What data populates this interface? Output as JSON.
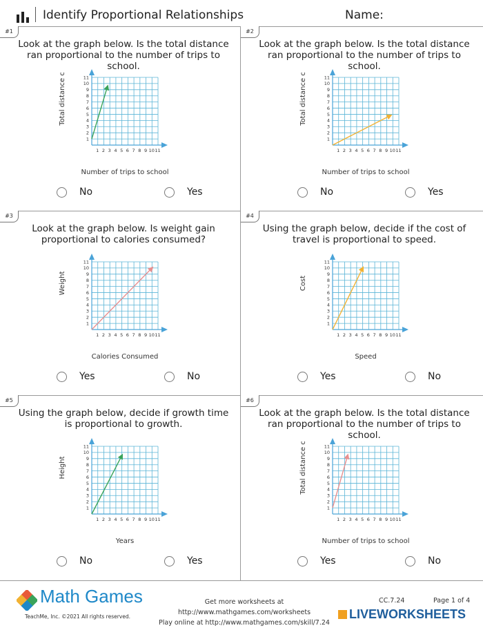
{
  "header": {
    "title": "Identify Proportional Relationships",
    "name_label": "Name:"
  },
  "problems": [
    {
      "badge": "#1",
      "question": "Look at the graph below. Is the total distance ran proportional to the number of trips to school.",
      "options": [
        "No",
        "Yes"
      ],
      "chart_data": {
        "type": "line",
        "ylabel": "Total distance c",
        "xlabel": "Number of trips to school",
        "x_ticks": [
          "1",
          "2",
          "3",
          "4",
          "5",
          "6",
          "7",
          "8",
          "9",
          "10",
          "11"
        ],
        "y_ticks": [
          "1",
          "2",
          "3",
          "4",
          "5",
          "6",
          "7",
          "8",
          "9",
          "10",
          "11"
        ],
        "xlim": [
          0,
          11
        ],
        "ylim": [
          0,
          11
        ],
        "series": [
          {
            "name": "line",
            "color": "#3aa35a",
            "points": [
              [
                0,
                1
              ],
              [
                2.6,
                9.5
              ]
            ]
          }
        ]
      }
    },
    {
      "badge": "#2",
      "question": "Look at the graph below. Is the total distance ran proportional to the number of trips to school.",
      "options": [
        "No",
        "Yes"
      ],
      "chart_data": {
        "type": "line",
        "ylabel": "Total distance c",
        "xlabel": "Number of trips to school",
        "x_ticks": [
          "1",
          "2",
          "3",
          "4",
          "5",
          "6",
          "7",
          "8",
          "9",
          "10",
          "11"
        ],
        "y_ticks": [
          "1",
          "2",
          "3",
          "4",
          "5",
          "6",
          "7",
          "8",
          "9",
          "10",
          "11"
        ],
        "xlim": [
          0,
          11
        ],
        "ylim": [
          0,
          11
        ],
        "series": [
          {
            "name": "line",
            "color": "#f2b233",
            "points": [
              [
                0,
                0
              ],
              [
                9.6,
                4.8
              ]
            ]
          }
        ]
      }
    },
    {
      "badge": "#3",
      "question": "Look at the graph below. Is weight gain proportional to calories consumed?",
      "options": [
        "Yes",
        "No"
      ],
      "chart_data": {
        "type": "line",
        "ylabel": "Weight",
        "xlabel": "Calories Consumed",
        "x_ticks": [
          "1",
          "2",
          "3",
          "4",
          "5",
          "6",
          "7",
          "8",
          "9",
          "10",
          "11"
        ],
        "y_ticks": [
          "1",
          "2",
          "3",
          "4",
          "5",
          "6",
          "7",
          "8",
          "9",
          "10",
          "11"
        ],
        "xlim": [
          0,
          11
        ],
        "ylim": [
          0,
          11
        ],
        "series": [
          {
            "name": "line",
            "color": "#e88f8f",
            "points": [
              [
                0,
                0
              ],
              [
                10,
                10
              ]
            ]
          }
        ]
      }
    },
    {
      "badge": "#4",
      "question": "Using the graph below, decide if the cost of travel is proportional to speed.",
      "options": [
        "Yes",
        "No"
      ],
      "chart_data": {
        "type": "line",
        "ylabel": "Cost",
        "xlabel": "Speed",
        "x_ticks": [
          "1",
          "2",
          "3",
          "4",
          "5",
          "6",
          "7",
          "8",
          "9",
          "10",
          "11"
        ],
        "y_ticks": [
          "1",
          "2",
          "3",
          "4",
          "5",
          "6",
          "7",
          "8",
          "9",
          "10",
          "11"
        ],
        "xlim": [
          0,
          11
        ],
        "ylim": [
          0,
          11
        ],
        "series": [
          {
            "name": "line",
            "color": "#f2b233",
            "points": [
              [
                0,
                0
              ],
              [
                5,
                10
              ]
            ]
          }
        ]
      }
    },
    {
      "badge": "#5",
      "question": "Using the graph below, decide if growth time is proportional to growth.",
      "options": [
        "No",
        "Yes"
      ],
      "chart_data": {
        "type": "line",
        "ylabel": "Height",
        "xlabel": "Years",
        "x_ticks": [
          "1",
          "2",
          "3",
          "4",
          "5",
          "6",
          "7",
          "8",
          "9",
          "10",
          "11"
        ],
        "y_ticks": [
          "1",
          "2",
          "3",
          "4",
          "5",
          "6",
          "7",
          "8",
          "9",
          "10",
          "11"
        ],
        "xlim": [
          0,
          11
        ],
        "ylim": [
          0,
          11
        ],
        "series": [
          {
            "name": "line",
            "color": "#3aa35a",
            "points": [
              [
                0,
                0
              ],
              [
                5,
                9.5
              ]
            ]
          }
        ]
      }
    },
    {
      "badge": "#6",
      "question": "Look at the graph below. Is the total distance ran proportional to the number of trips to school.",
      "options": [
        "Yes",
        "No"
      ],
      "chart_data": {
        "type": "line",
        "ylabel": "Total distance c",
        "xlabel": "Number of trips to school",
        "x_ticks": [
          "1",
          "2",
          "3",
          "4",
          "5",
          "6",
          "7",
          "8",
          "9",
          "10",
          "11"
        ],
        "y_ticks": [
          "1",
          "2",
          "3",
          "4",
          "5",
          "6",
          "7",
          "8",
          "9",
          "10",
          "11"
        ],
        "xlim": [
          0,
          11
        ],
        "ylim": [
          0,
          11
        ],
        "series": [
          {
            "name": "line",
            "color": "#e88f8f",
            "points": [
              [
                0,
                1
              ],
              [
                2.5,
                9.5
              ]
            ]
          }
        ]
      }
    }
  ],
  "footer": {
    "brand": "Math Games",
    "copyright": "TeachMe, Inc. ©2021 All rights reserved.",
    "link1": "Get more worksheets at http://www.mathgames.com/worksheets",
    "link2": "Play online at http://www.mathgames.com/skill/7.24",
    "standard": "CC.7.24",
    "page": "Page 1 of 4",
    "watermark": "LIVEWORKSHEETS"
  },
  "colors": {
    "grid": "#5ab4d6",
    "axis_arrow": "#4aa3d8",
    "brand": "#1e88c8"
  }
}
